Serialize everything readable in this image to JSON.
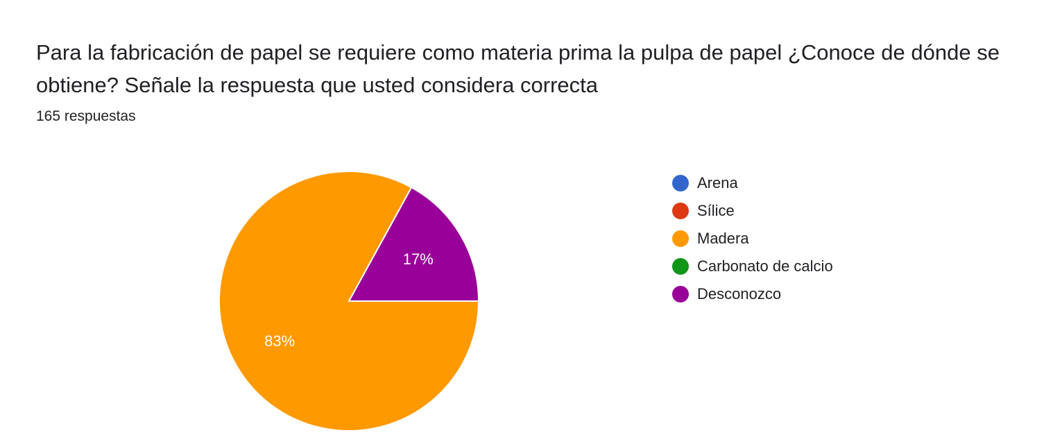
{
  "question": {
    "title": "Para la fabricación de papel se requiere como materia prima la pulpa de papel ¿Conoce de dónde se obtiene? Señale la respuesta que usted considera correcta",
    "response_count": "165 respuestas"
  },
  "chart_data": {
    "type": "pie",
    "categories": [
      "Arena",
      "Sílice",
      "Madera",
      "Carbonato de calcio",
      "Desconozco"
    ],
    "values": [
      0,
      0,
      83,
      0,
      17
    ],
    "colors": [
      "#3366cc",
      "#dc3912",
      "#ff9900",
      "#109618",
      "#990099"
    ],
    "data_labels": [
      "",
      "",
      "83%",
      "",
      "17%"
    ],
    "legend_position": "right",
    "start_angle_deg": 0
  }
}
